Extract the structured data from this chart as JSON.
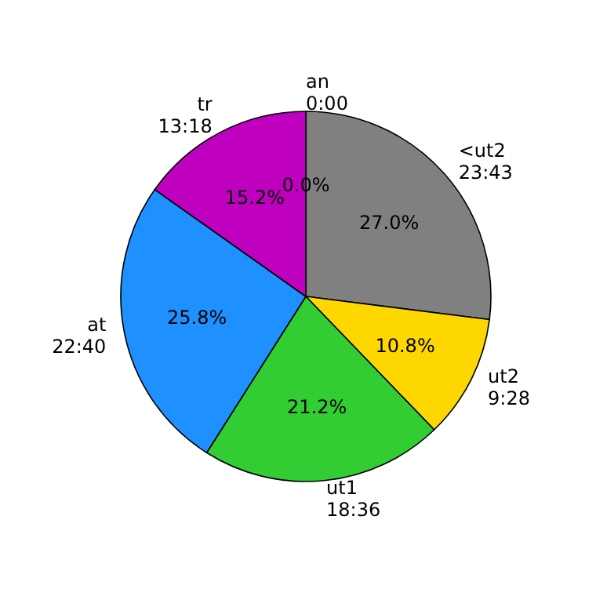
{
  "chart_data": {
    "type": "pie",
    "categories": [
      "an\n0:00",
      "<ut2\n23:43",
      "ut2\n9:28",
      "ut1\n18:36",
      "at\n22:40",
      "tr\n13:18"
    ],
    "values": [
      0.0,
      27.0,
      10.8,
      21.2,
      25.8,
      15.2
    ],
    "colors": [
      "#ff0000",
      "#808080",
      "#ffd700",
      "#32cd32",
      "#1e90ff",
      "#bf00bf"
    ],
    "value_labels": [
      "0.0%",
      "27.0%",
      "10.8%",
      "21.2%",
      "25.8%",
      "15.2%"
    ]
  }
}
